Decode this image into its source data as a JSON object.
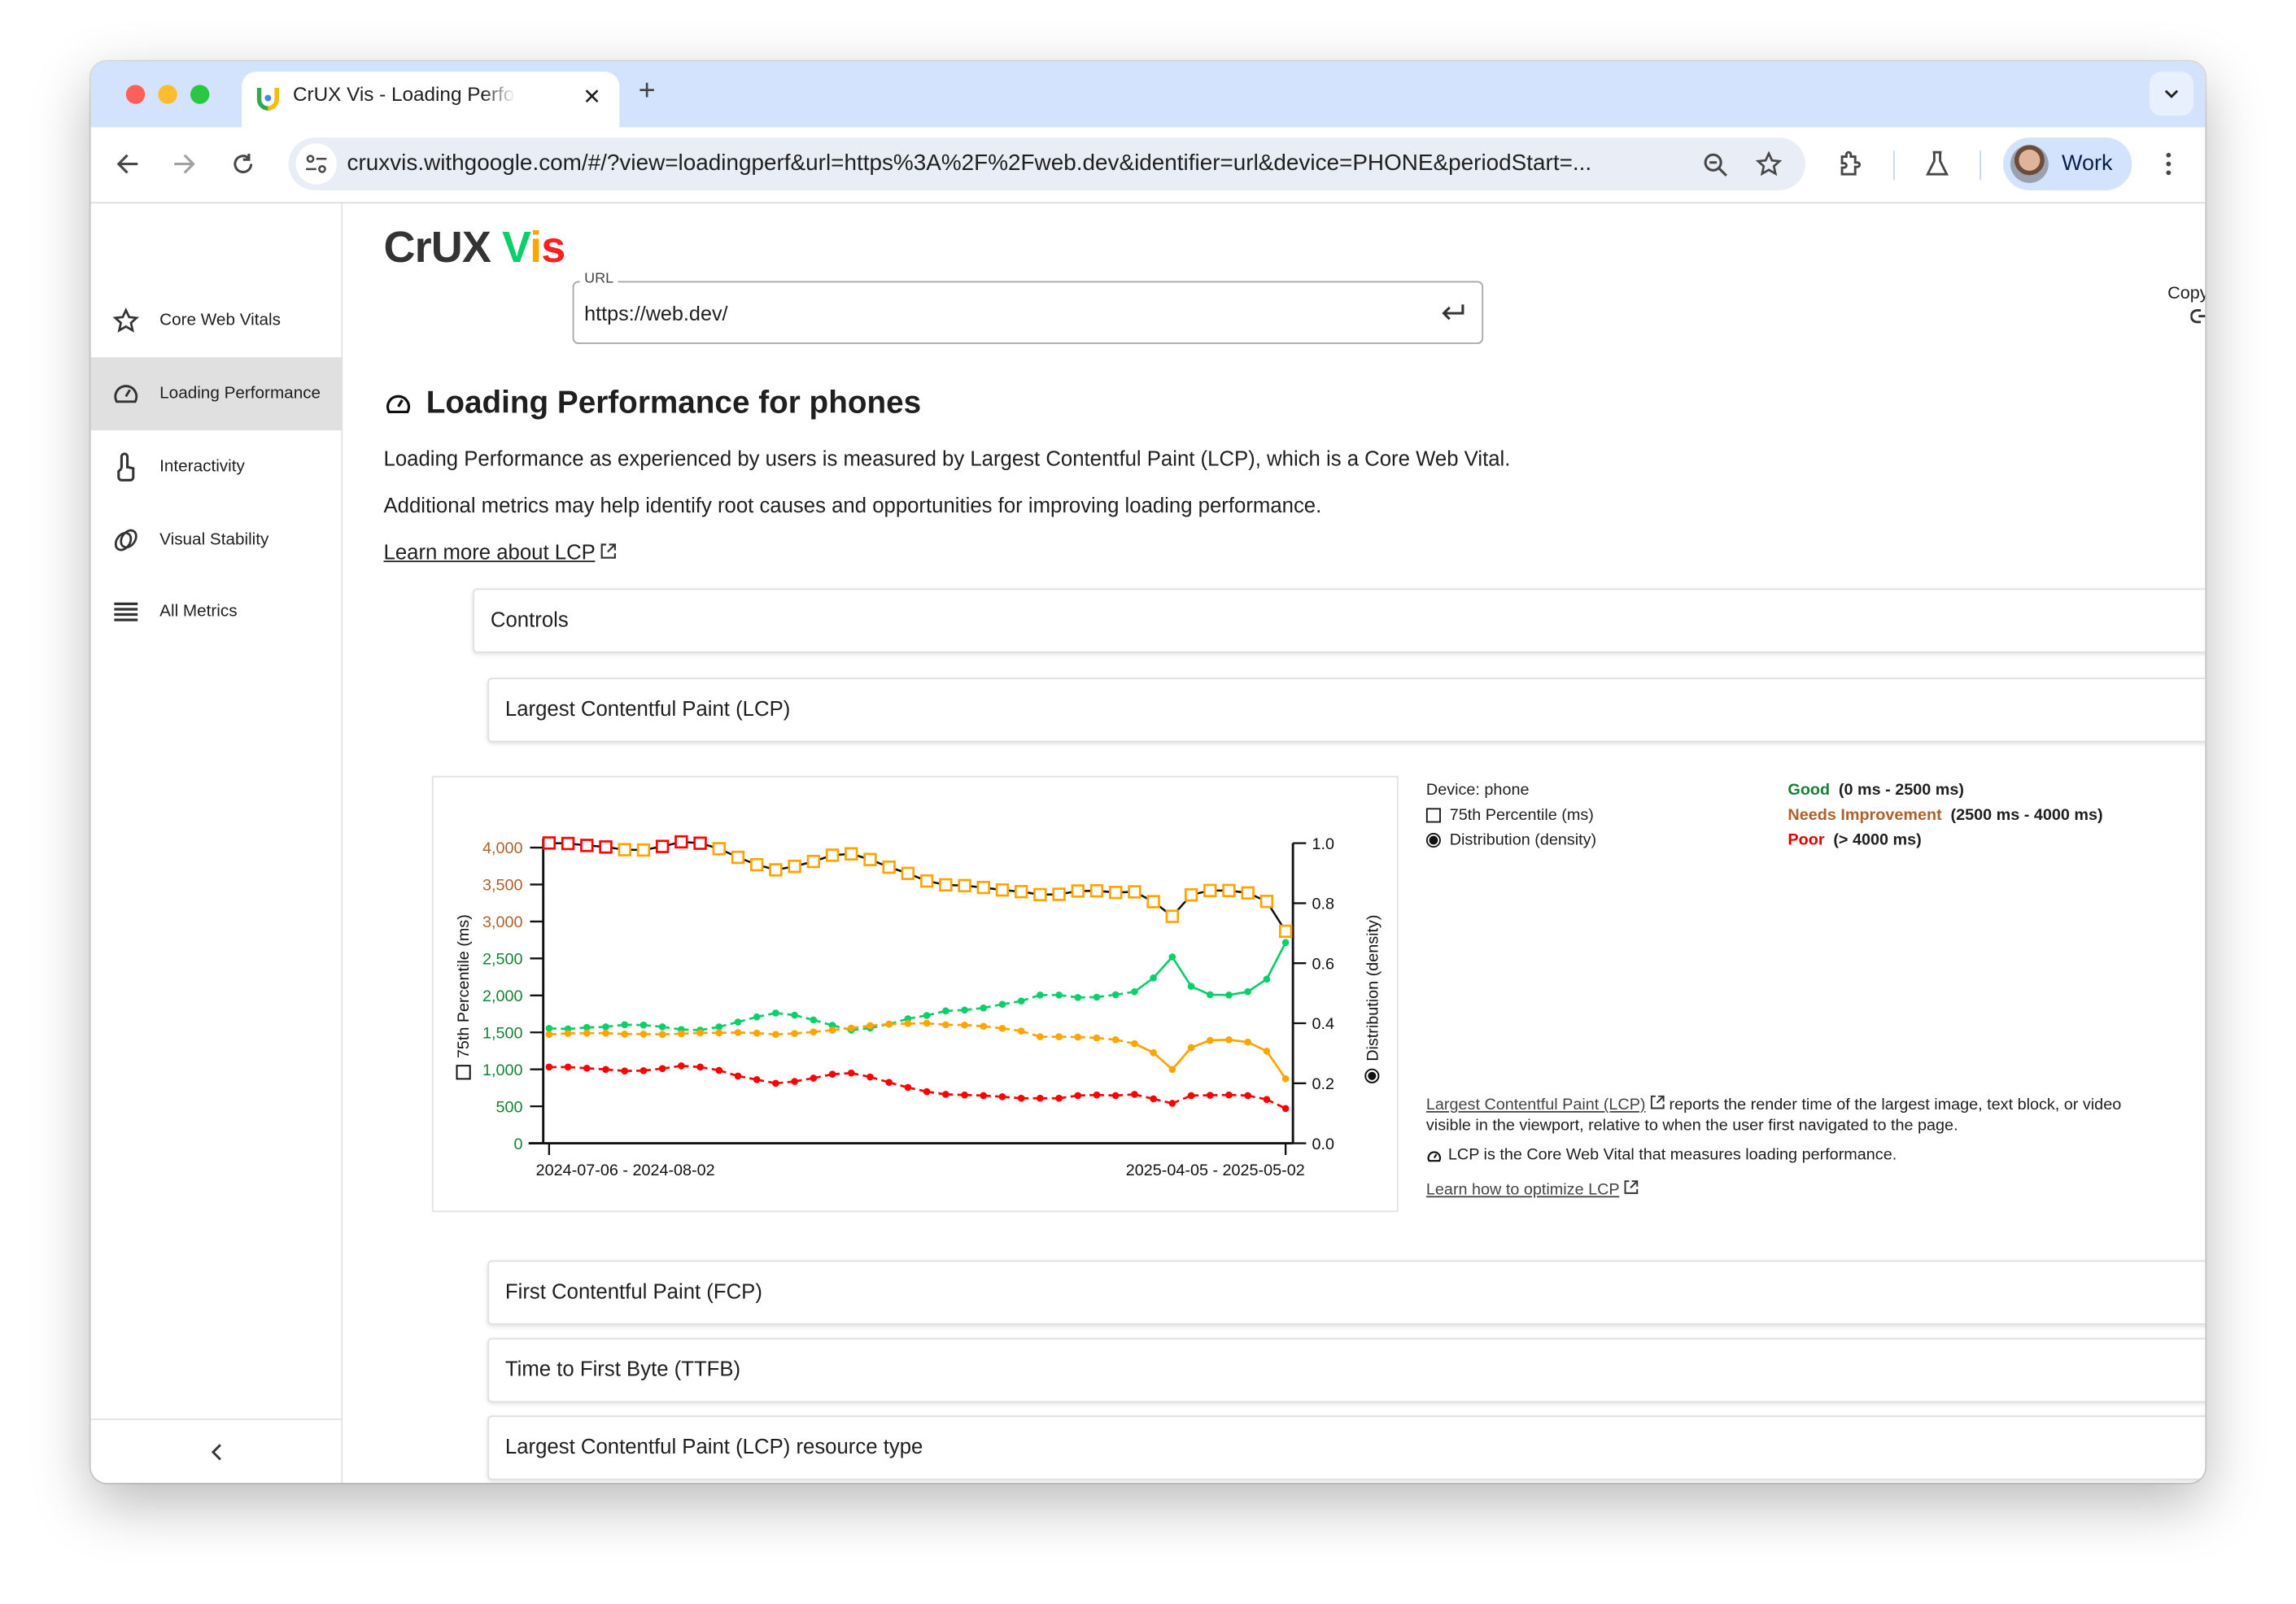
{
  "browser": {
    "tab_title": "CrUX Vis - Loading Performance",
    "new_tab": "+",
    "url": "cruxvis.withgoogle.com/#/?view=loadingperf&url=https%3A%2F%2Fweb.dev&identifier=url&device=PHONE&periodStart=...",
    "profile_label": "Work"
  },
  "sidebar": {
    "items": [
      {
        "label": "Core Web Vitals",
        "icon": "star-icon"
      },
      {
        "label": "Loading Performance",
        "icon": "gauge-icon",
        "active": true
      },
      {
        "label": "Interactivity",
        "icon": "pointer-icon"
      },
      {
        "label": "Visual Stability",
        "icon": "rings-icon"
      },
      {
        "label": "All Metrics",
        "icon": "list-icon"
      }
    ],
    "collapse": "‹"
  },
  "header": {
    "logo_part1": "CrUX ",
    "logo_V": "V",
    "logo_i": "i",
    "logo_s": "s",
    "url_label": "URL",
    "url_value": "https://web.dev/",
    "copy_link": "Copy link"
  },
  "page": {
    "title": "Loading Performance for phones",
    "intro": "Loading Performance as experienced by users is measured by Largest Contentful Paint (LCP), which is a Core Web Vital.",
    "intro2": "Additional metrics may help identify root causes and opportunities for improving loading performance.",
    "learn_more": "Learn more about LCP"
  },
  "panels": {
    "controls": "Controls",
    "lcp": "Largest Contentful Paint (LCP)",
    "fcp": "First Contentful Paint (FCP)",
    "ttfb": "Time to First Byte (TTFB)",
    "lcp_resource": "Largest Contentful Paint (LCP) resource type"
  },
  "legend": {
    "device": "Device: phone",
    "p75": "75th Percentile (ms)",
    "distribution": "Distribution (density)",
    "good": "Good",
    "good_range": "(0 ms - 2500 ms)",
    "ni": "Needs Improvement",
    "ni_range": "(2500 ms - 4000 ms)",
    "poor": "Poor",
    "poor_range": "(> 4000 ms)"
  },
  "description": {
    "link": "Largest Contentful Paint (LCP)",
    "text": " reports the render time of the largest image, text block, or video visible in the viewport, relative to when the user first navigated to the page.",
    "cwv_note": "LCP is the Core Web Vital that measures loading performance.",
    "optimize": "Learn how to optimize LCP"
  },
  "colors": {
    "good": "#0cce6b",
    "ni": "#ffa400",
    "poor": "#ff0000",
    "good_text": "#188038",
    "ni_text": "#b0602b",
    "poor_text": "#e00000"
  },
  "chart_data": {
    "type": "line",
    "x_tick_labels": [
      "2024-07-06 - 2024-08-02",
      "2025-04-05 - 2025-05-02"
    ],
    "ylabel_left": "75th Percentile (ms)",
    "ylabel_right": "Distribution (density)",
    "ylim_left": [
      0,
      4000
    ],
    "yticks_left": [
      0,
      500,
      1000,
      1500,
      2000,
      2500,
      3000,
      3500,
      4000
    ],
    "ytick_labels_left": [
      "0",
      "500",
      "1,000",
      "1,500",
      "2,000",
      "2,500",
      "3,000",
      "3,500",
      "4,000"
    ],
    "ylim_right": [
      0,
      1.0
    ],
    "yticks_right": [
      "0.0",
      "0.2",
      "0.4",
      "0.6",
      "0.8",
      "1.0"
    ],
    "thresholds": {
      "good": 2500,
      "poor": 4000
    },
    "p75_ms": [
      4062,
      4055,
      4029,
      4008,
      3971,
      3967,
      4015,
      4077,
      4059,
      3985,
      3868,
      3768,
      3699,
      3746,
      3812,
      3897,
      3915,
      3838,
      3735,
      3651,
      3548,
      3496,
      3485,
      3460,
      3426,
      3404,
      3364,
      3368,
      3412,
      3415,
      3393,
      3401,
      3268,
      3070,
      3360,
      3419,
      3419,
      3386,
      3272,
      2868
    ],
    "series": [
      {
        "key": "good",
        "values": [
          0.383,
          0.381,
          0.386,
          0.388,
          0.395,
          0.394,
          0.388,
          0.379,
          0.377,
          0.388,
          0.404,
          0.421,
          0.434,
          0.427,
          0.411,
          0.393,
          0.377,
          0.384,
          0.397,
          0.415,
          0.426,
          0.441,
          0.444,
          0.451,
          0.463,
          0.474,
          0.494,
          0.494,
          0.486,
          0.487,
          0.495,
          0.505,
          0.551,
          0.621,
          0.523,
          0.495,
          0.494,
          0.505,
          0.547,
          0.669
        ]
      },
      {
        "key": "ni",
        "values": [
          0.363,
          0.366,
          0.367,
          0.367,
          0.364,
          0.364,
          0.363,
          0.365,
          0.368,
          0.368,
          0.369,
          0.367,
          0.363,
          0.366,
          0.371,
          0.377,
          0.384,
          0.392,
          0.397,
          0.399,
          0.4,
          0.395,
          0.394,
          0.39,
          0.383,
          0.374,
          0.355,
          0.355,
          0.354,
          0.351,
          0.345,
          0.332,
          0.302,
          0.246,
          0.319,
          0.343,
          0.345,
          0.337,
          0.307,
          0.215
        ]
      },
      {
        "key": "poor",
        "values": [
          0.254,
          0.254,
          0.25,
          0.246,
          0.241,
          0.242,
          0.249,
          0.258,
          0.254,
          0.243,
          0.224,
          0.212,
          0.2,
          0.206,
          0.217,
          0.23,
          0.234,
          0.221,
          0.203,
          0.186,
          0.172,
          0.163,
          0.161,
          0.159,
          0.155,
          0.15,
          0.15,
          0.15,
          0.159,
          0.161,
          0.159,
          0.163,
          0.148,
          0.133,
          0.159,
          0.16,
          0.161,
          0.159,
          0.146,
          0.116
        ]
      }
    ]
  }
}
